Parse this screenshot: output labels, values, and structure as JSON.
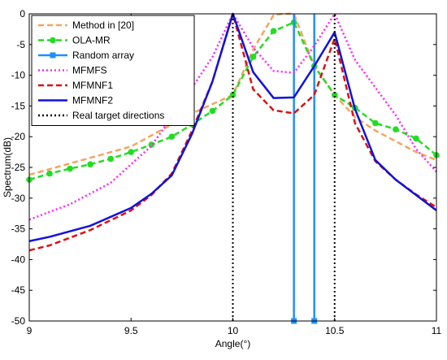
{
  "chart_data": {
    "type": "line",
    "xlabel": "Angle(°)",
    "ylabel": "Spectrum(dB)",
    "xlim": [
      9,
      11
    ],
    "ylim": [
      -50,
      0
    ],
    "xticks": [
      9,
      9.5,
      10,
      10.5,
      11
    ],
    "xtick_labels": [
      "9",
      "9.5",
      "10",
      "10.5",
      "11"
    ],
    "yticks": [
      0,
      -5,
      -10,
      -15,
      -20,
      -25,
      -30,
      -35,
      -40,
      -45,
      -50
    ],
    "ytick_labels": [
      "0",
      "-5",
      "-10",
      "-15",
      "-20",
      "-25",
      "-30",
      "-35",
      "-40",
      "-45",
      "-50"
    ],
    "grid": false,
    "legend_position": "top-left",
    "series": [
      {
        "name": "Method in [20]",
        "color": "#f4a460",
        "style": "dashed",
        "marker": "none",
        "x": [
          9,
          9.5,
          9.8,
          10,
          10.1,
          10.2,
          10.25,
          10.3,
          10.4,
          10.5,
          10.6,
          10.7,
          10.9,
          11
        ],
        "y": [
          -26.2,
          -21.6,
          -16.2,
          -13.2,
          -5.8,
          -0.2,
          0,
          0,
          -8.5,
          -13.2,
          -16.8,
          -19,
          -22.5,
          -23.8
        ]
      },
      {
        "name": "OLA-MR",
        "color": "#22dd22",
        "style": "dashed",
        "marker": "circle",
        "x": [
          9,
          9.1,
          9.2,
          9.3,
          9.4,
          9.5,
          9.6,
          9.7,
          9.8,
          9.9,
          10,
          10.1,
          10.2,
          10.3,
          10.4,
          10.5,
          10.6,
          10.7,
          10.8,
          10.9,
          11
        ],
        "y": [
          -27,
          -26,
          -25.2,
          -24.5,
          -23.6,
          -22.5,
          -21.3,
          -20,
          -18,
          -15.8,
          -13.2,
          -7,
          -2.8,
          -1.4,
          -8.5,
          -13.2,
          -15.3,
          -17.8,
          -18.8,
          -20.3,
          -23
        ]
      },
      {
        "name": "Random array",
        "color": "#1e90ff",
        "style": "solid",
        "marker": "square",
        "x": [
          10.3,
          10.4
        ],
        "y": [
          0,
          0
        ]
      },
      {
        "name": "MFMFS",
        "color": "#ff22ff",
        "style": "dotted",
        "marker": "none",
        "x": [
          9,
          9.2,
          9.4,
          9.6,
          9.8,
          9.9,
          10,
          10.1,
          10.2,
          10.3,
          10.4,
          10.5,
          10.6,
          10.8,
          10.9,
          11
        ],
        "y": [
          -33.5,
          -31,
          -27.5,
          -21.5,
          -12,
          -7,
          0,
          -5.5,
          -9.3,
          -9.6,
          -5.2,
          0,
          -7.5,
          -16.5,
          -22,
          -25.7
        ]
      },
      {
        "name": "MFMNF1",
        "color": "#dd1111",
        "style": "dashed",
        "marker": "none",
        "x": [
          9,
          9.1,
          9.3,
          9.5,
          9.6,
          9.7,
          9.8,
          9.9,
          10,
          10.1,
          10.2,
          10.3,
          10.4,
          10.5,
          10.6,
          10.7,
          10.8,
          10.9,
          11
        ],
        "y": [
          -38.5,
          -37.7,
          -35.2,
          -32,
          -29.5,
          -26,
          -19,
          -11,
          0,
          -12.3,
          -15.7,
          -16.2,
          -13.2,
          -4,
          -17.8,
          -24,
          -27,
          -29.4,
          -31.5
        ]
      },
      {
        "name": "MFMNF2",
        "color": "#1111dd",
        "style": "solid",
        "marker": "none",
        "x": [
          9,
          9.1,
          9.3,
          9.5,
          9.6,
          9.7,
          9.8,
          9.9,
          10,
          10.1,
          10.2,
          10.3,
          10.4,
          10.5,
          10.6,
          10.7,
          10.8,
          10.9,
          11
        ],
        "y": [
          -37,
          -36.3,
          -34.5,
          -31.6,
          -29.3,
          -26.3,
          -19.5,
          -11,
          0,
          -9.5,
          -13.7,
          -13.6,
          -8.5,
          -3,
          -15.5,
          -23.8,
          -27,
          -29.5,
          -32
        ]
      },
      {
        "name": "Real target directions",
        "color": "#000000",
        "style": "dotted",
        "marker": "none",
        "x": [
          10,
          10.5
        ],
        "y": [
          0,
          0
        ]
      }
    ]
  }
}
